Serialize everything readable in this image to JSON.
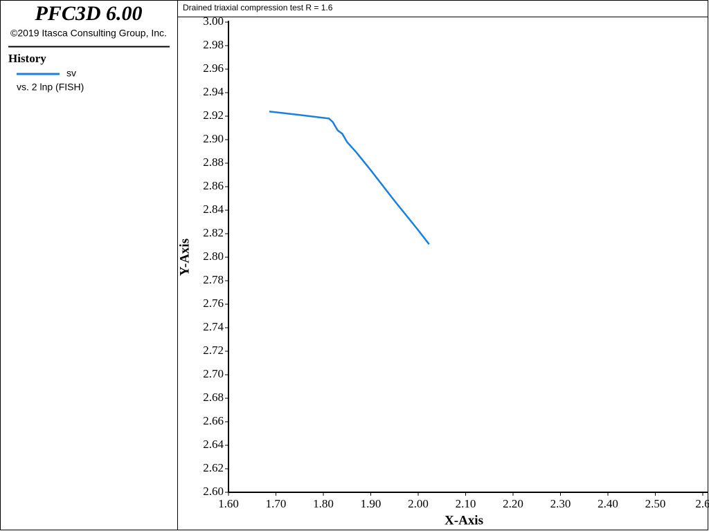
{
  "app": {
    "name": "PFC3D 6.00",
    "copyright": "©2019 Itasca Consulting Group, Inc.",
    "panel_title": "History",
    "legend_note": "vs. 2 lnp (FISH)"
  },
  "chart_data": {
    "type": "line",
    "title": "Drained triaxial compression test R = 1.6",
    "x_label": "X-Axis",
    "y_label": "Y-Axis",
    "x": [
      1.686,
      1.75,
      1.812,
      1.82,
      1.83,
      1.84,
      1.85,
      1.87,
      1.9,
      1.95,
      2.0,
      2.023
    ],
    "series": [
      {
        "name": "sv",
        "color": "#1a7fe0",
        "values": [
          2.924,
          2.921,
          2.918,
          2.915,
          2.908,
          2.905,
          2.898,
          2.889,
          2.874,
          2.848,
          2.823,
          2.811
        ]
      }
    ],
    "xlim": [
      1.6,
      2.6
    ],
    "xticks": [
      {
        "value": 1.6,
        "label": "1.60"
      },
      {
        "value": 1.7,
        "label": "1.70"
      },
      {
        "value": 1.8,
        "label": "1.80"
      },
      {
        "value": 1.9,
        "label": "1.90"
      },
      {
        "value": 2.0,
        "label": "2.00"
      },
      {
        "value": 2.1,
        "label": "2.10"
      },
      {
        "value": 2.2,
        "label": "2.20"
      },
      {
        "value": 2.3,
        "label": "2.30"
      },
      {
        "value": 2.4,
        "label": "2.40"
      },
      {
        "value": 2.5,
        "label": "2.50"
      },
      2.6
    ],
    "ylim": [
      2.6,
      3.0
    ],
    "yticks": [
      {
        "value": 2.6,
        "label": "2.60"
      },
      2.62,
      2.64,
      2.66,
      2.68,
      {
        "value": 2.7,
        "label": "2.70"
      },
      2.72,
      2.74,
      2.76,
      2.78,
      {
        "value": 2.8,
        "label": "2.80"
      },
      2.82,
      2.84,
      2.86,
      2.88,
      {
        "value": 2.9,
        "label": "2.90"
      },
      2.92,
      2.94,
      2.96,
      2.98,
      {
        "value": 3.0,
        "label": "3.00"
      }
    ],
    "grid": false
  }
}
